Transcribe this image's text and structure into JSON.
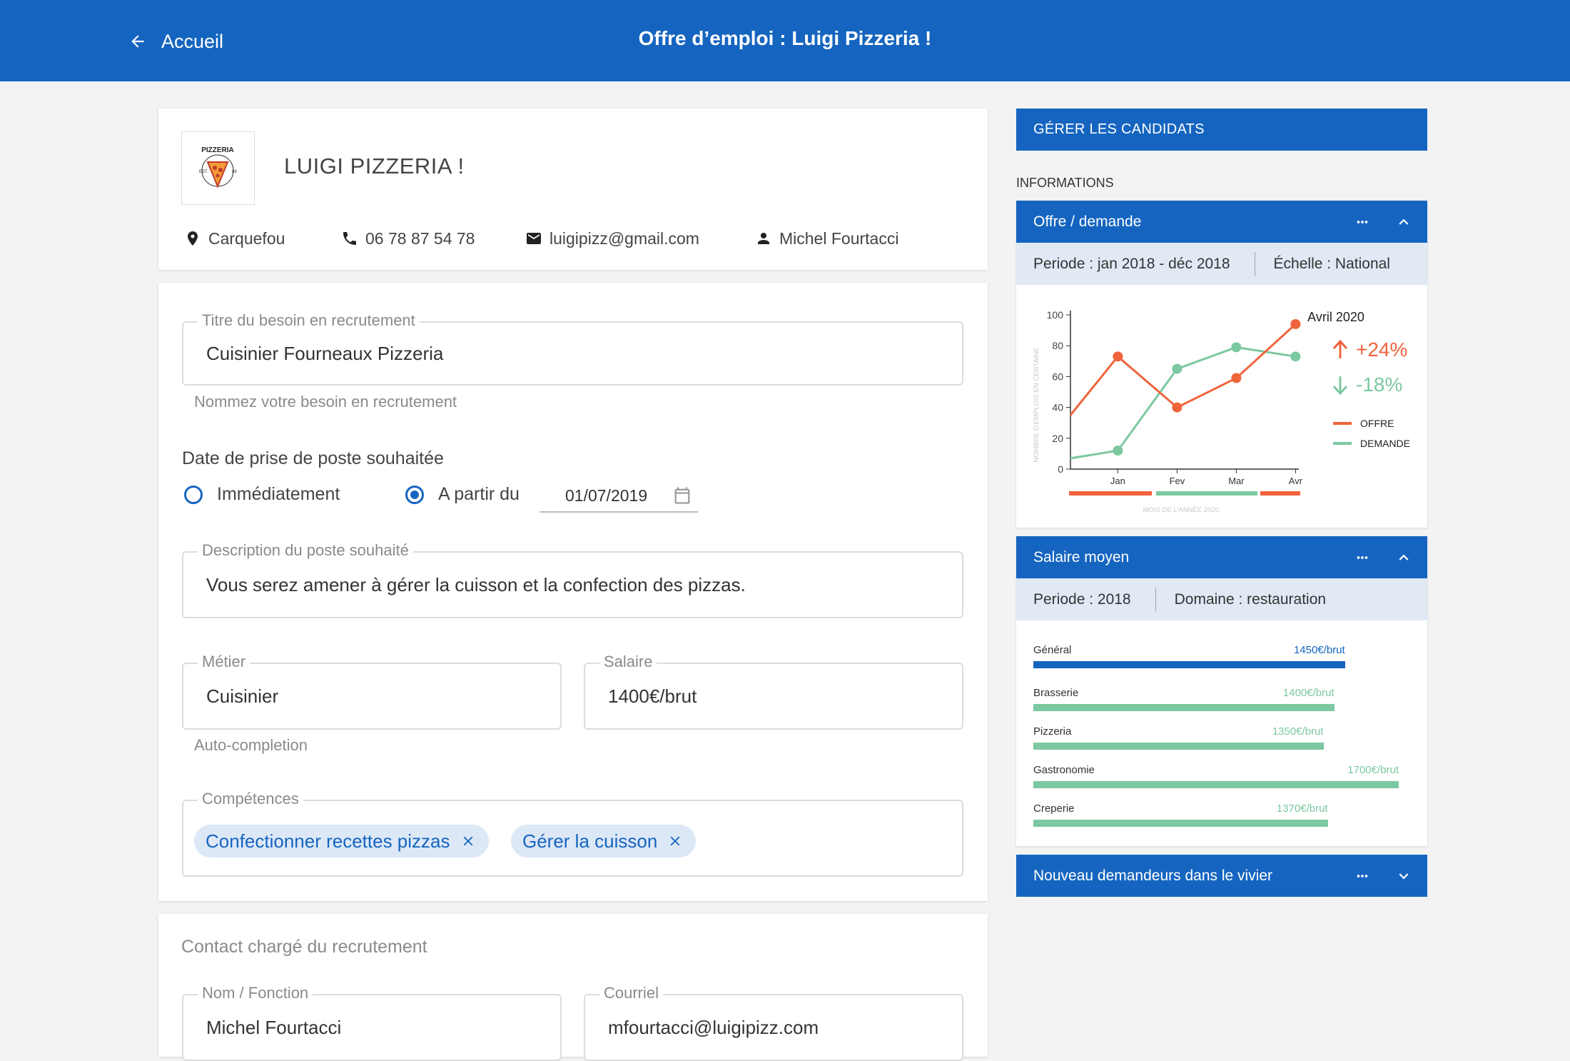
{
  "header": {
    "back_label": "Accueil",
    "title": "Offre d’emploi : Luigi Pizzeria !"
  },
  "company": {
    "logo_text": "PIZZERIA",
    "name": "LUIGI PIZZERIA !",
    "city": "Carquefou",
    "phone": "06 78 87 54 78",
    "email": "luigipizz@gmail.com",
    "contact": "Michel Fourtacci"
  },
  "form": {
    "title_label": "Titre du besoin en recrutement",
    "title_value": "Cuisinier Fourneaux Pizzeria",
    "title_helper": "Nommez votre besoin en recrutement",
    "date_label": "Date de prise de poste souhaitée",
    "radio_immediate": "Immédiatement",
    "radio_from": "A partir du",
    "date_value": "01/07/2019",
    "description_label": "Description du poste souhaité",
    "description_value": "Vous serez amener à gérer la cuisson et la confection des pizzas.",
    "job_label": "Métier",
    "job_value": "Cuisinier",
    "job_helper": "Auto-completion",
    "salary_label": "Salaire",
    "salary_value": "1400€/brut",
    "skills_label": "Compétences",
    "skills": [
      "Confectionner recettes pizzas",
      "Gérer la cuisson"
    ]
  },
  "contact_section": {
    "title": "Contact chargé du recrutement",
    "name_label": "Nom / Fonction",
    "name_value": "Michel Fourtacci",
    "email_label": "Courriel",
    "email_value": "mfourtacci@luigipizz.com"
  },
  "sidebar": {
    "manage_button": "GÉRER LES CANDIDATS",
    "info_title": "INFORMATIONS",
    "panel1": {
      "title": "Offre / demande",
      "period": "Periode : jan 2018 - déc 2018",
      "scale": "Échelle : National"
    },
    "panel2": {
      "title": "Salaire moyen",
      "period": "Periode : 2018",
      "domain": "Domaine : restauration"
    },
    "panel3": {
      "title": "Nouveau demandeurs dans le vivier"
    }
  },
  "colors": {
    "primary": "#1565c0",
    "offre": "#f0643c",
    "demande": "#7cc8a0"
  },
  "chart_data": [
    {
      "type": "line",
      "title": "",
      "xlabel": "MOIS DE L'ANNÉE 2020",
      "ylabel": "NOMBRE D'EMPLOIS EN CENTAINE",
      "categories": [
        "Jan",
        "Fev",
        "Mar",
        "Avr"
      ],
      "x": [
        0,
        0.8,
        1.8,
        2.8,
        3.8,
        4.8
      ],
      "yticks": [
        "0",
        "20",
        "40",
        "60",
        "80",
        "100"
      ],
      "ylim": [
        0,
        100
      ],
      "series": [
        {
          "name": "OFFRE",
          "values": [
            35,
            73,
            40,
            59,
            94
          ],
          "x": [
            0,
            0.8,
            1.8,
            2.8,
            3.8
          ]
        },
        {
          "name": "DEMANDE",
          "values": [
            7,
            12,
            65,
            79,
            73
          ],
          "x": [
            0,
            0.8,
            1.8,
            2.8,
            3.8
          ]
        }
      ],
      "summary": {
        "date": "Avril 2020",
        "offre_change": "+24%",
        "demande_change": "-18%"
      },
      "legend_position": "right"
    },
    {
      "type": "bar",
      "orientation": "horizontal",
      "categories": [
        "Général",
        "Brasserie",
        "Pizzeria",
        "Gastronomie",
        "Creperie"
      ],
      "values": [
        1450,
        1400,
        1350,
        1700,
        1370
      ],
      "labels": [
        "1450€/brut",
        "1400€/brut",
        "1350€/brut",
        "1700€/brut",
        "1370€/brut"
      ],
      "max": 1700
    }
  ]
}
